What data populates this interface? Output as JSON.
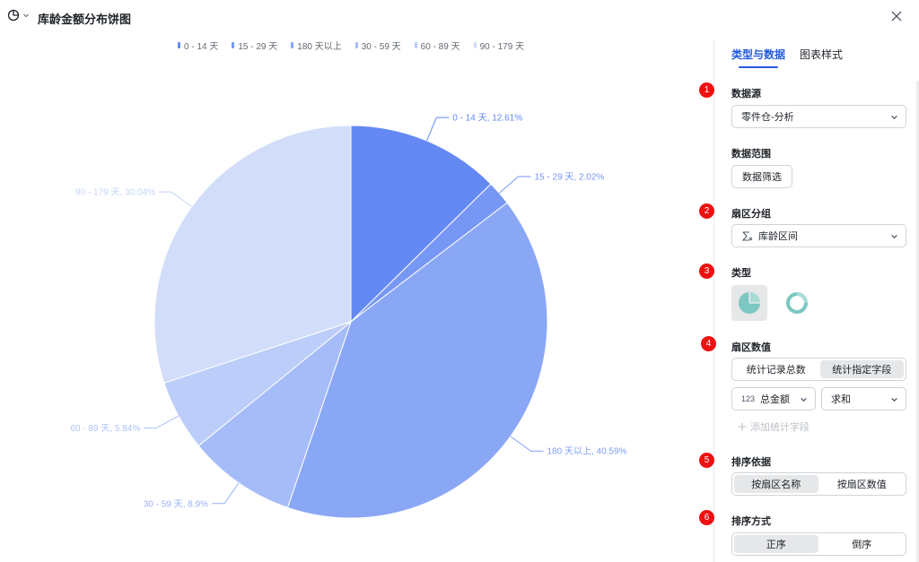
{
  "header": {
    "title": "库龄金额分布饼图"
  },
  "colors": {
    "accent": "#245bdb",
    "badge": "#ee1111",
    "type_icon": "#7cc7c1"
  },
  "chart_data": {
    "type": "pie",
    "categories": [
      "0 - 14 天",
      "15 - 29 天",
      "180 天以上",
      "30 - 59 天",
      "60 - 89 天",
      "90 - 179 天"
    ],
    "values": [
      12.61,
      2.02,
      40.59,
      8.9,
      5.84,
      30.04
    ],
    "labels": [
      "0 - 14 天, 12.61%",
      "15 - 29 天, 2.02%",
      "180 天以上, 40.59%",
      "30 - 59 天, 8.9%",
      "60 - 89 天, 5.84%",
      "90 - 179 天, 30.04%"
    ],
    "colors": [
      "#6489f2",
      "#7797f4",
      "#8aa7f6",
      "#a6bcf8",
      "#bccdf9",
      "#d2ddfa"
    ],
    "label_colors": [
      "#6489f2",
      "#7797f4",
      "#7f9ff5",
      "#99b2f7",
      "#b0c3f8",
      "#c5d4f9"
    ],
    "legend_position": "top"
  },
  "panel": {
    "tabs": [
      {
        "label": "类型与数据"
      },
      {
        "label": "图表样式"
      }
    ],
    "steps": [
      "1",
      "2",
      "3",
      "4",
      "5",
      "6"
    ],
    "data_source": {
      "title": "数据源",
      "value": "零件仓-分析"
    },
    "data_range": {
      "title": "数据范围",
      "button": "数据筛选"
    },
    "sector_group": {
      "title": "扇区分组",
      "value": "库龄区间"
    },
    "chart_type": {
      "title": "类型"
    },
    "sector_value": {
      "title": "扇区数值",
      "options": [
        "统计记录总数",
        "统计指定字段"
      ],
      "field": "总金额",
      "field_prefix": "123",
      "agg": "求和",
      "add_label": "添加统计字段"
    },
    "sort_by": {
      "title": "排序依据",
      "options": [
        "按扇区名称",
        "按扇区数值"
      ]
    },
    "sort_order": {
      "title": "排序方式",
      "options": [
        "正序",
        "倒序"
      ]
    }
  }
}
